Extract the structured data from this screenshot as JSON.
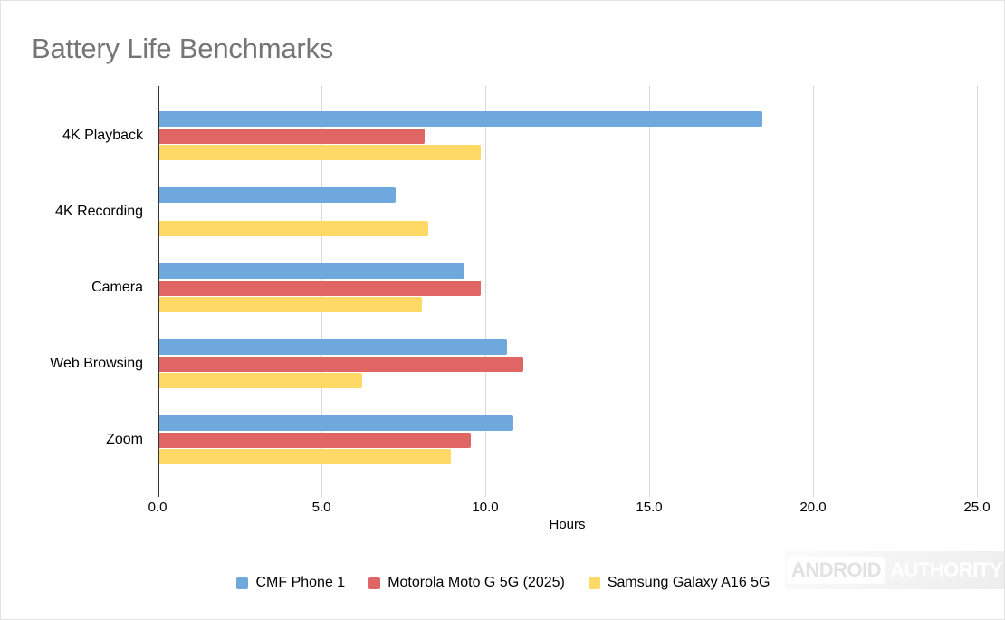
{
  "title": "Battery Life Benchmarks",
  "chart_data": {
    "type": "bar",
    "orientation": "horizontal",
    "title": "Battery Life Benchmarks",
    "xlabel": "Hours",
    "ylabel": "",
    "xlim": [
      0,
      25
    ],
    "x_ticks": [
      "0.0",
      "5.0",
      "10.0",
      "15.0",
      "20.0",
      "25.0"
    ],
    "grid": "vertical",
    "legend_position": "bottom",
    "categories": [
      "4K Playback",
      "4K Recording",
      "Camera",
      "Web Browsing",
      "Zoom"
    ],
    "series": [
      {
        "name": "CMF Phone 1",
        "color": "#6fa8dc",
        "values": [
          18.4,
          7.2,
          9.3,
          10.6,
          10.8
        ]
      },
      {
        "name": "Motorola Moto G 5G (2025)",
        "color": "#e06666",
        "values": [
          8.1,
          null,
          9.8,
          11.1,
          9.5
        ]
      },
      {
        "name": "Samsung Galaxy A16 5G",
        "color": "#ffd966",
        "values": [
          9.8,
          8.2,
          8.0,
          6.2,
          8.9
        ]
      }
    ]
  },
  "colors": {
    "title_text": "#757575",
    "axis_line": "#333333",
    "gridline": "#d9d9d9",
    "tick_text": "#000000"
  },
  "watermark": {
    "brand_box": "ANDROID",
    "brand_text": "AUTHORITY"
  }
}
